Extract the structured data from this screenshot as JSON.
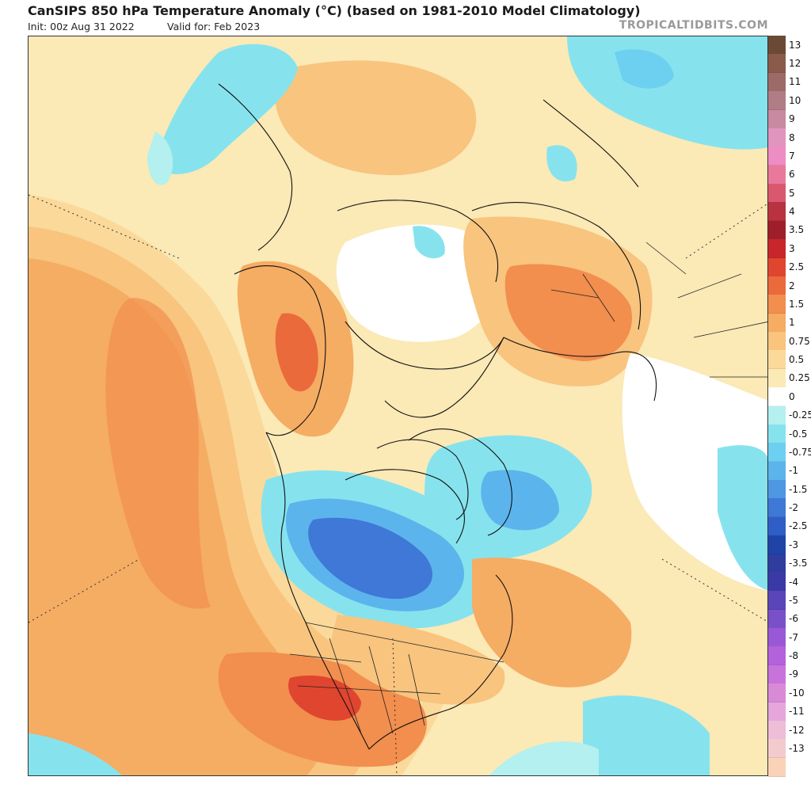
{
  "header": {
    "title": "CanSIPS 850 hPa Temperature Anomaly (°C) (based on 1981-2010 Model Climatology)",
    "init": "Init: 00z Aug 31 2022",
    "valid": "Valid for: Feb 2023",
    "brand": "TROPICALTIDBITS.COM"
  },
  "legend": {
    "levels": [
      {
        "label": "13",
        "color": "#6b4a35"
      },
      {
        "label": "12",
        "color": "#8a5a4a"
      },
      {
        "label": "11",
        "color": "#9c6a68"
      },
      {
        "label": "10",
        "color": "#b07c86"
      },
      {
        "label": "9",
        "color": "#c88aa0"
      },
      {
        "label": "8",
        "color": "#e095bf"
      },
      {
        "label": "7",
        "color": "#ee8cc4"
      },
      {
        "label": "6",
        "color": "#e8799a"
      },
      {
        "label": "5",
        "color": "#d9586e"
      },
      {
        "label": "4",
        "color": "#b8323f"
      },
      {
        "label": "3.5",
        "color": "#9e1e2a"
      },
      {
        "label": "3",
        "color": "#c8262a"
      },
      {
        "label": "2.5",
        "color": "#e0452f"
      },
      {
        "label": "2",
        "color": "#ea6a3c"
      },
      {
        "label": "1.5",
        "color": "#f28e4e"
      },
      {
        "label": "1",
        "color": "#f5ac63"
      },
      {
        "label": "0.75",
        "color": "#f8c47e"
      },
      {
        "label": "0.5",
        "color": "#fad99a"
      },
      {
        "label": "0.25",
        "color": "#fbe9b6"
      },
      {
        "label": "0",
        "color": "#ffffff"
      },
      {
        "label": "-0.25",
        "color": "#b3f0ef"
      },
      {
        "label": "-0.5",
        "color": "#86e3ee"
      },
      {
        "label": "-0.75",
        "color": "#6ed0f0"
      },
      {
        "label": "-1",
        "color": "#5cb4ec"
      },
      {
        "label": "-1.5",
        "color": "#4e97e3"
      },
      {
        "label": "-2",
        "color": "#3f78d6"
      },
      {
        "label": "-2.5",
        "color": "#2f5ec6"
      },
      {
        "label": "-3",
        "color": "#1f44a8"
      },
      {
        "label": "-3.5",
        "color": "#2e3d9e"
      },
      {
        "label": "-4",
        "color": "#3a3aa6"
      },
      {
        "label": "-5",
        "color": "#5a46b8"
      },
      {
        "label": "-6",
        "color": "#7a50c8"
      },
      {
        "label": "-7",
        "color": "#9a58d6"
      },
      {
        "label": "-8",
        "color": "#b462dc"
      },
      {
        "label": "-9",
        "color": "#c873dc"
      },
      {
        "label": "-10",
        "color": "#d88ad6"
      },
      {
        "label": "-11",
        "color": "#e6a6dc"
      },
      {
        "label": "-12",
        "color": "#eebdd8"
      },
      {
        "label": "-13",
        "color": "#f4cbcd"
      },
      {
        "label": "",
        "color": "#f9d2b8"
      }
    ]
  }
}
